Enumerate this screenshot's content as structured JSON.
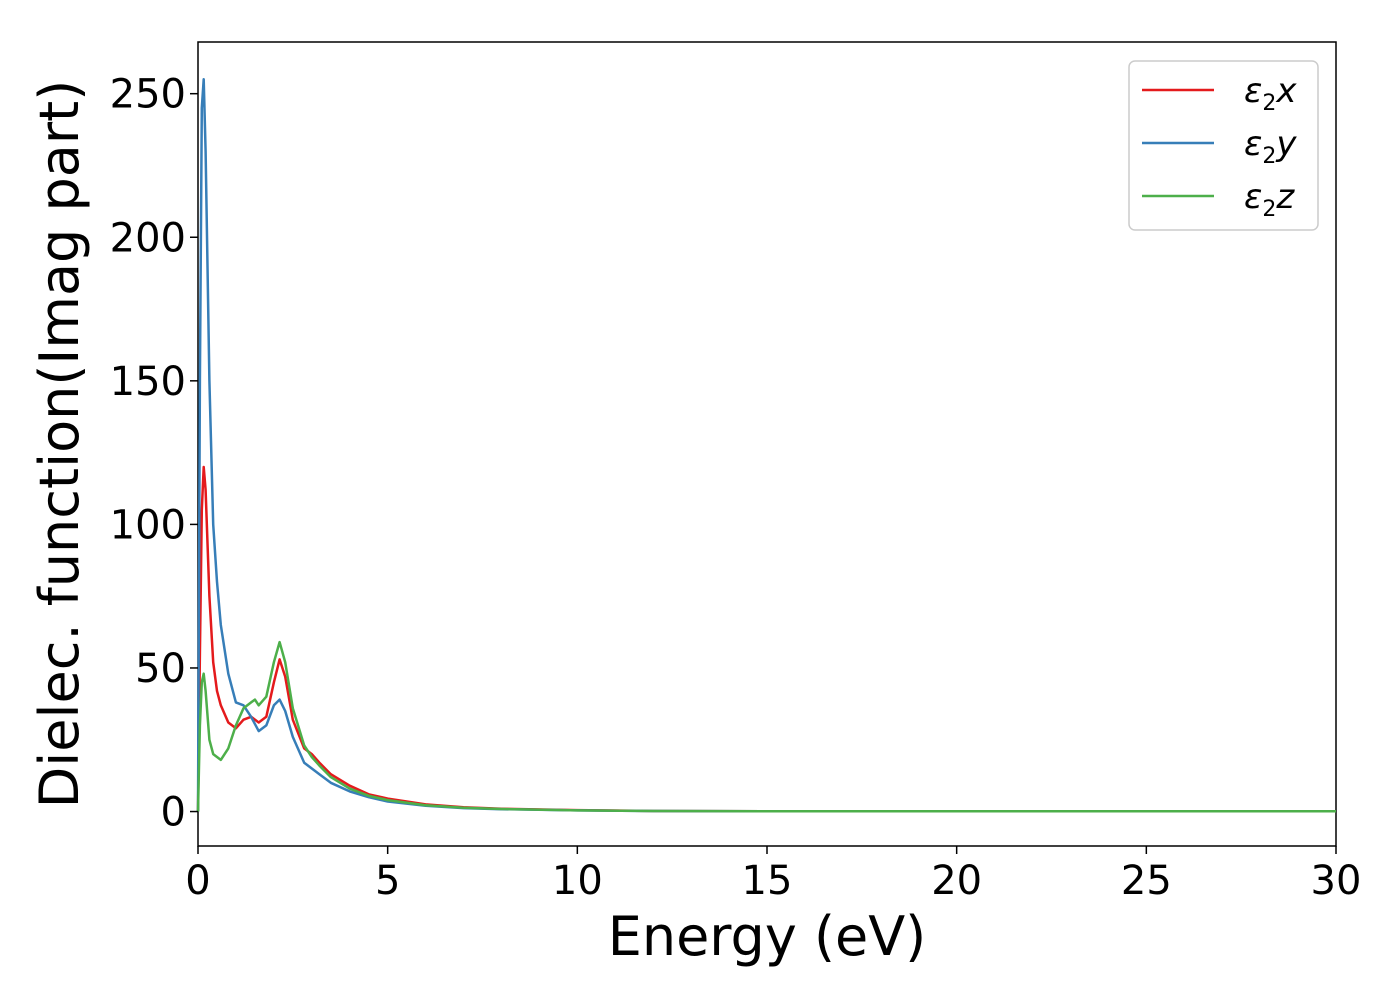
{
  "chart_data": {
    "type": "line",
    "xlabel": "Energy (eV)",
    "ylabel": "Dielec. function(Imag part)",
    "xlim": [
      0,
      30
    ],
    "ylim": [
      -12,
      268
    ],
    "xticks": [
      0,
      5,
      10,
      15,
      20,
      25,
      30
    ],
    "yticks": [
      0,
      50,
      100,
      150,
      200,
      250
    ],
    "grid": false,
    "legend_position": "top-right",
    "series": [
      {
        "name": "ε2x",
        "legend": {
          "base": "ε",
          "sub": "2",
          "suffix": "x"
        },
        "color": "#e41a1c",
        "x": [
          0,
          0.05,
          0.1,
          0.15,
          0.2,
          0.3,
          0.4,
          0.5,
          0.6,
          0.8,
          1.0,
          1.2,
          1.4,
          1.6,
          1.8,
          2.0,
          2.15,
          2.3,
          2.5,
          2.8,
          3.0,
          3.2,
          3.5,
          4.0,
          4.5,
          5.0,
          6.0,
          7.0,
          8.0,
          10.0,
          12.0,
          15.0,
          20.0,
          25.0,
          30.0
        ],
        "y": [
          0,
          55,
          105,
          120,
          112,
          75,
          52,
          42,
          37,
          31,
          29,
          32,
          33,
          31,
          33,
          45,
          53,
          47,
          32,
          22,
          20,
          17,
          13,
          9,
          6,
          4.5,
          2.5,
          1.5,
          1.0,
          0.5,
          0.2,
          0.1,
          0.1,
          0.1,
          0.1
        ]
      },
      {
        "name": "ε2y",
        "legend": {
          "base": "ε",
          "sub": "2",
          "suffix": "y"
        },
        "color": "#377eb8",
        "x": [
          0,
          0.05,
          0.1,
          0.15,
          0.2,
          0.3,
          0.4,
          0.5,
          0.6,
          0.8,
          1.0,
          1.2,
          1.4,
          1.6,
          1.8,
          2.0,
          2.15,
          2.3,
          2.5,
          2.8,
          3.0,
          3.2,
          3.5,
          4.0,
          4.5,
          5.0,
          6.0,
          7.0,
          8.0,
          10.0,
          12.0,
          15.0,
          20.0,
          25.0,
          30.0
        ],
        "y": [
          0,
          150,
          245,
          255,
          230,
          150,
          100,
          80,
          65,
          48,
          38,
          37,
          33,
          28,
          30,
          37,
          39,
          35,
          26,
          17,
          15,
          13,
          10,
          7,
          5,
          3.5,
          2,
          1.2,
          0.8,
          0.4,
          0.2,
          0.1,
          0.1,
          0.1,
          0.1
        ]
      },
      {
        "name": "ε2z",
        "legend": {
          "base": "ε",
          "sub": "2",
          "suffix": "z"
        },
        "color": "#4daf4a",
        "x": [
          0,
          0.05,
          0.1,
          0.15,
          0.2,
          0.3,
          0.4,
          0.6,
          0.8,
          1.0,
          1.2,
          1.4,
          1.5,
          1.6,
          1.8,
          2.0,
          2.15,
          2.3,
          2.5,
          2.8,
          3.0,
          3.2,
          3.5,
          4.0,
          4.5,
          5.0,
          6.0,
          7.0,
          8.0,
          10.0,
          12.0,
          15.0,
          20.0,
          25.0,
          30.0
        ],
        "y": [
          0,
          30,
          45,
          48,
          42,
          25,
          20,
          18,
          22,
          30,
          36,
          38,
          39,
          37,
          40,
          52,
          59,
          52,
          36,
          23,
          19,
          16,
          12,
          8,
          5.5,
          4,
          2.2,
          1.3,
          0.9,
          0.4,
          0.2,
          0.1,
          0.1,
          0.1,
          0.1
        ]
      }
    ]
  }
}
